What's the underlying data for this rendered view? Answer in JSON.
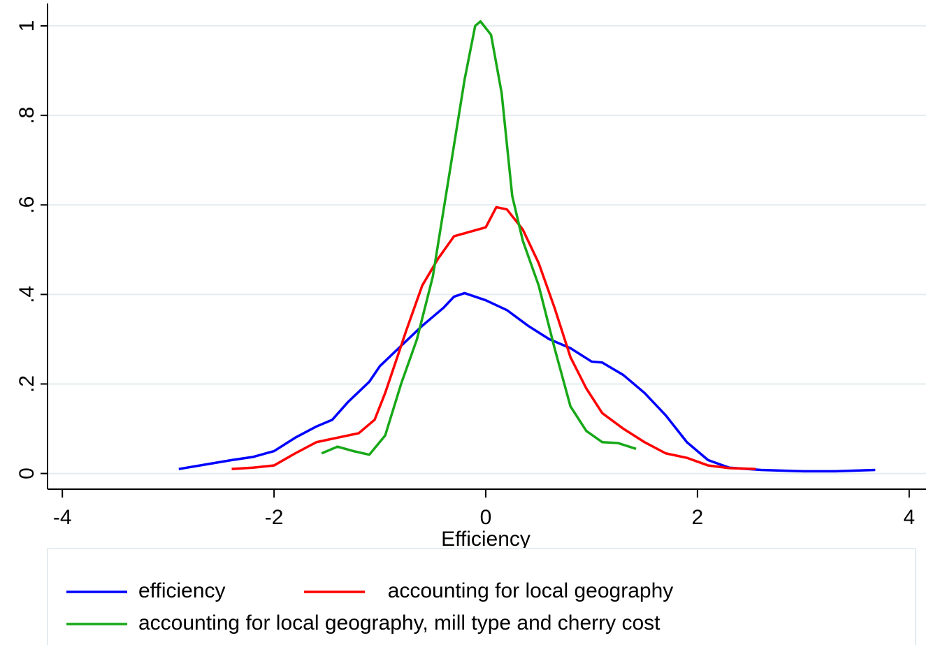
{
  "chart_data": {
    "type": "line",
    "xlabel": "Efficiency",
    "xlim": [
      -4.14,
      4.16
    ],
    "xticks": [
      -4,
      -2,
      0,
      2,
      4
    ],
    "ylim": [
      -0.035,
      1.05
    ],
    "yticks": [
      0,
      {
        "value": 0.2,
        "label": ".2"
      },
      {
        "value": 0.4,
        "label": ".4"
      },
      {
        "value": 0.6,
        "label": ".6"
      },
      {
        "value": 0.8,
        "label": ".8"
      },
      1
    ],
    "grid": true,
    "legend": "bottom",
    "series": [
      {
        "name": "efficiency",
        "color": "#0000ff",
        "x": [
          -2.9,
          -2.6,
          -2.4,
          -2.2,
          -2.0,
          -1.8,
          -1.6,
          -1.45,
          -1.3,
          -1.1,
          -1.0,
          -0.8,
          -0.6,
          -0.4,
          -0.3,
          -0.2,
          -0.1,
          0.0,
          0.2,
          0.4,
          0.6,
          0.8,
          1.0,
          1.1,
          1.3,
          1.5,
          1.7,
          1.9,
          2.1,
          2.3,
          2.6,
          3.0,
          3.3,
          3.68
        ],
        "values": [
          0.01,
          0.022,
          0.03,
          0.037,
          0.05,
          0.08,
          0.105,
          0.12,
          0.16,
          0.205,
          0.24,
          0.285,
          0.33,
          0.37,
          0.395,
          0.403,
          0.395,
          0.387,
          0.365,
          0.33,
          0.3,
          0.28,
          0.25,
          0.248,
          0.22,
          0.18,
          0.13,
          0.07,
          0.03,
          0.013,
          0.008,
          0.005,
          0.005,
          0.008
        ]
      },
      {
        "name": "  accounting for local geography",
        "color": "#ff0000",
        "x": [
          -2.4,
          -2.2,
          -2.0,
          -1.8,
          -1.6,
          -1.4,
          -1.2,
          -1.05,
          -0.95,
          -0.85,
          -0.75,
          -0.6,
          -0.45,
          -0.3,
          -0.15,
          0.0,
          0.1,
          0.2,
          0.35,
          0.5,
          0.65,
          0.8,
          0.95,
          1.1,
          1.3,
          1.5,
          1.7,
          1.9,
          2.1,
          2.3,
          2.55
        ],
        "values": [
          0.01,
          0.013,
          0.018,
          0.045,
          0.07,
          0.08,
          0.09,
          0.12,
          0.18,
          0.25,
          0.32,
          0.42,
          0.48,
          0.53,
          0.54,
          0.55,
          0.595,
          0.59,
          0.545,
          0.47,
          0.37,
          0.26,
          0.19,
          0.135,
          0.1,
          0.07,
          0.045,
          0.035,
          0.018,
          0.012,
          0.01
        ]
      },
      {
        "name": "accounting for local geography, mill type and cherry cost",
        "color": "#18a818",
        "x": [
          -1.55,
          -1.4,
          -1.25,
          -1.1,
          -0.95,
          -0.8,
          -0.65,
          -0.5,
          -0.35,
          -0.2,
          -0.1,
          -0.05,
          0.05,
          0.15,
          0.25,
          0.35,
          0.5,
          0.65,
          0.8,
          0.95,
          1.1,
          1.25,
          1.42
        ],
        "values": [
          0.045,
          0.06,
          0.05,
          0.042,
          0.085,
          0.2,
          0.3,
          0.44,
          0.66,
          0.88,
          1.0,
          1.01,
          0.98,
          0.85,
          0.62,
          0.52,
          0.42,
          0.28,
          0.15,
          0.095,
          0.07,
          0.068,
          0.055
        ]
      }
    ]
  }
}
